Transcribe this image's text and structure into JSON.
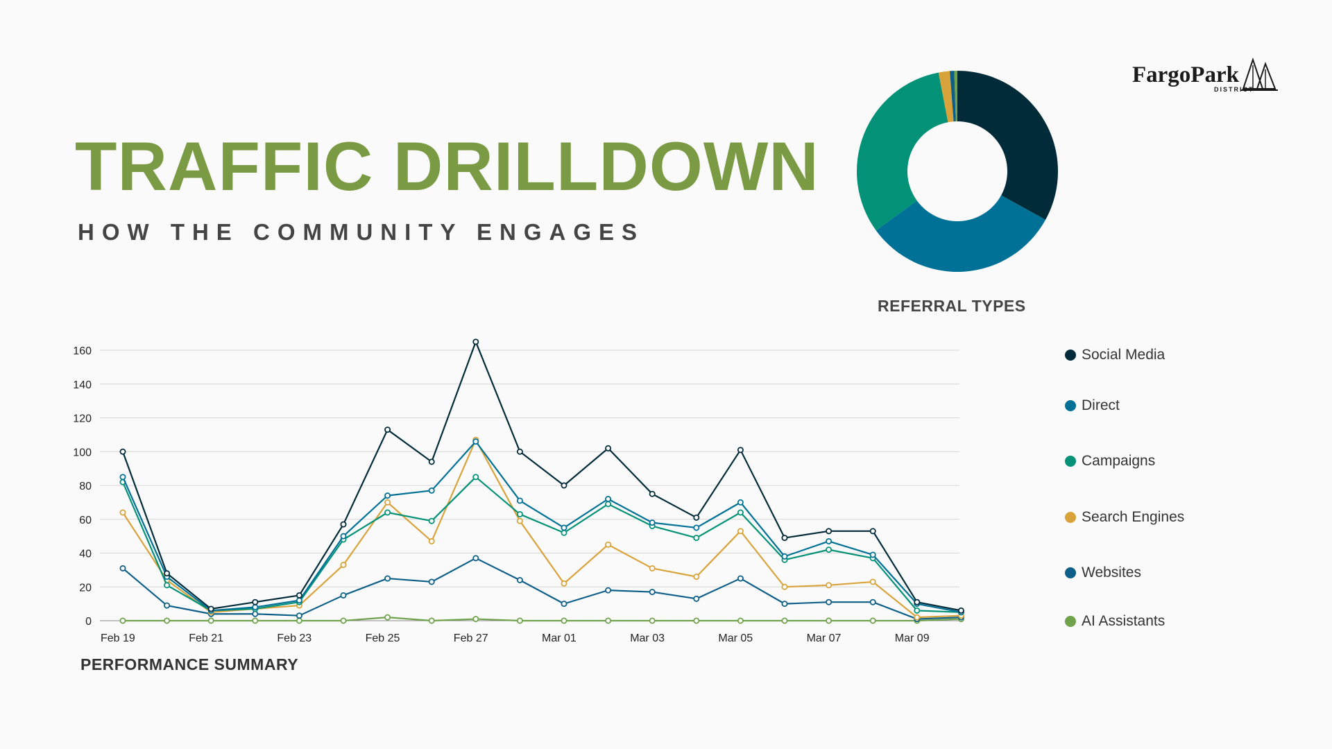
{
  "header": {
    "title": "TRAFFIC DRILLDOWN",
    "subtitle": "HOW THE COMMUNITY ENGAGES"
  },
  "logo": {
    "wordmark": "FargoPark",
    "sub": "DISTRICT"
  },
  "captions": {
    "referral": "REFERRAL TYPES",
    "performance": "PERFORMANCE SUMMARY"
  },
  "chart_data": [
    {
      "type": "pie",
      "variant": "donut",
      "title": "",
      "labels": [
        "Social Media",
        "Direct",
        "Campaigns",
        "Search Engines",
        "Websites",
        "AI Assistants"
      ],
      "values": [
        33.0,
        32.0,
        32.0,
        1.8,
        0.7,
        0.5
      ],
      "colors": [
        "#022b3a",
        "#007196",
        "#039277",
        "#d9a33b",
        "#0d5f87",
        "#6fa24b"
      ]
    },
    {
      "type": "line",
      "title": "",
      "xlabel": "",
      "ylabel": "",
      "ylim": [
        0,
        160
      ],
      "yticks": [
        0,
        20,
        40,
        60,
        80,
        100,
        120,
        140,
        160
      ],
      "grid": true,
      "legend": "right",
      "x": [
        "Feb 19",
        "Feb 20",
        "Feb 21",
        "Feb 22",
        "Feb 23",
        "Feb 24",
        "Feb 25",
        "Feb 26",
        "Feb 27",
        "Feb 28",
        "Mar 01",
        "Mar 02",
        "Mar 03",
        "Mar 04",
        "Mar 05",
        "Mar 06",
        "Mar 07",
        "Mar 08",
        "Mar 09",
        "Mar 10"
      ],
      "xtick_labels": [
        "Feb 19",
        "Feb 21",
        "Feb 23",
        "Feb 25",
        "Feb 27",
        "Mar 01",
        "Mar 03",
        "Mar 05",
        "Mar 07",
        "Mar 09"
      ],
      "series": [
        {
          "name": "Social Media",
          "color": "#022b3a",
          "values": [
            100,
            28,
            7,
            11,
            15,
            57,
            113,
            94,
            165,
            100,
            80,
            102,
            75,
            61,
            101,
            49,
            53,
            53,
            11,
            6
          ]
        },
        {
          "name": "Direct",
          "color": "#007196",
          "values": [
            85,
            26,
            6,
            8,
            12,
            50,
            74,
            77,
            106,
            71,
            55,
            72,
            58,
            55,
            70,
            38,
            47,
            39,
            10,
            5
          ]
        },
        {
          "name": "Campaigns",
          "color": "#039277",
          "values": [
            82,
            21,
            6,
            7,
            11,
            48,
            64,
            59,
            85,
            63,
            52,
            69,
            56,
            49,
            64,
            36,
            42,
            37,
            6,
            5
          ]
        },
        {
          "name": "Search Engines",
          "color": "#d9a33b",
          "values": [
            64,
            24,
            5,
            7,
            9,
            33,
            70,
            47,
            107,
            59,
            22,
            45,
            31,
            26,
            53,
            20,
            21,
            23,
            2,
            3
          ]
        },
        {
          "name": "Websites",
          "color": "#0d5f87",
          "values": [
            31,
            9,
            4,
            4,
            3,
            15,
            25,
            23,
            37,
            24,
            10,
            18,
            17,
            13,
            25,
            10,
            11,
            11,
            1,
            2
          ]
        },
        {
          "name": "AI Assistants",
          "color": "#6fa24b",
          "values": [
            0,
            0,
            0,
            0,
            0,
            0,
            2,
            0,
            1,
            0,
            0,
            0,
            0,
            0,
            0,
            0,
            0,
            0,
            0,
            1
          ]
        }
      ]
    }
  ]
}
